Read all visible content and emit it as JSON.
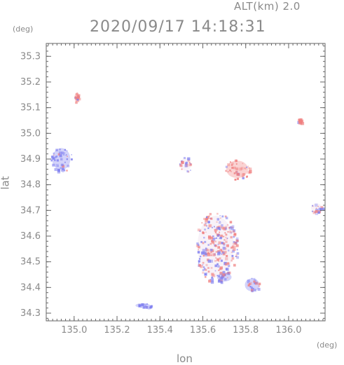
{
  "header": {
    "altitude_label": "ALT(km)  2.0",
    "timestamp": "2020/09/17 14:18:31"
  },
  "axes": {
    "y_unit": "(deg)",
    "x_unit": "(deg)",
    "x_label": "lon",
    "y_label": "lat"
  },
  "colors": {
    "positive": "#f08080",
    "negative": "#8080f0",
    "axis": "#666666"
  },
  "chart_data": {
    "type": "heatmap",
    "title": "",
    "xlabel": "lon",
    "ylabel": "lat",
    "xlim": [
      134.87,
      136.17
    ],
    "ylim": [
      34.27,
      35.35
    ],
    "xticks": [
      135.0,
      135.2,
      135.4,
      135.6,
      135.8,
      136.0
    ],
    "yticks": [
      34.3,
      34.4,
      34.5,
      34.6,
      34.7,
      34.8,
      34.9,
      35.0,
      35.1,
      35.2,
      35.3
    ],
    "grid": false,
    "echo_regions": [
      {
        "lon": 134.94,
        "lat": 34.9,
        "rx": 0.05,
        "ry": 0.05,
        "sign": "negative"
      },
      {
        "lon": 135.66,
        "lat": 34.56,
        "rx": 0.1,
        "ry": 0.14,
        "sign": "mixed"
      },
      {
        "lon": 135.76,
        "lat": 34.86,
        "rx": 0.06,
        "ry": 0.04,
        "sign": "positive"
      },
      {
        "lon": 135.83,
        "lat": 34.41,
        "rx": 0.04,
        "ry": 0.03,
        "sign": "negative"
      },
      {
        "lon": 135.7,
        "lat": 34.44,
        "rx": 0.04,
        "ry": 0.02,
        "sign": "negative"
      },
      {
        "lon": 135.32,
        "lat": 34.33,
        "rx": 0.04,
        "ry": 0.01,
        "sign": "negative"
      },
      {
        "lon": 136.13,
        "lat": 34.71,
        "rx": 0.03,
        "ry": 0.02,
        "sign": "mixed"
      },
      {
        "lon": 136.05,
        "lat": 35.05,
        "rx": 0.01,
        "ry": 0.01,
        "sign": "positive"
      },
      {
        "lon": 135.01,
        "lat": 35.14,
        "rx": 0.01,
        "ry": 0.02,
        "sign": "positive"
      },
      {
        "lon": 135.52,
        "lat": 34.88,
        "rx": 0.03,
        "ry": 0.03,
        "sign": "mixed"
      }
    ]
  }
}
